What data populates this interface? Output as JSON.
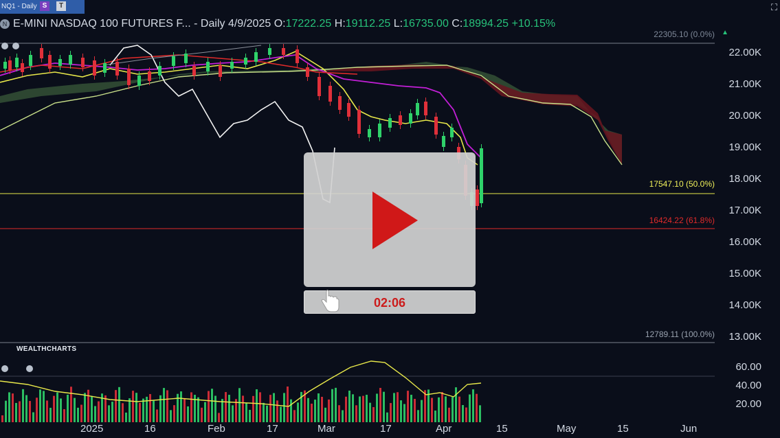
{
  "tab": {
    "label": "NQ1 - Daily",
    "s_btn": "S",
    "t_btn": "T"
  },
  "legend": {
    "symbol": "N",
    "title": "E-MINI NASDAQ 100 FUTURES F... - Daily",
    "date": "4/9/2025",
    "open_key": "O:",
    "open": "17222.25",
    "high_key": "H:",
    "high": "19112.25",
    "low_key": "L:",
    "low": "16735.00",
    "close_key": "C:",
    "close": "18994.25",
    "change": "+10.15%",
    "change_arrow": "▲"
  },
  "price_levels": {
    "top": "22305.10 (0.0%)",
    "mid": "17547.10 (50.0%)",
    "fib618": "16424.22 (61.8%)",
    "bottom": "12789.11 (100.0%)"
  },
  "colors": {
    "up": "#2fd26a",
    "down": "#e0303a",
    "fib50": "#e8e84a",
    "fib618": "#e02a2a",
    "play": "#d01818",
    "cloud_green": "#3a5a3a",
    "cloud_red": "#6a1520"
  },
  "y_axis": [
    "22.00K",
    "21.00K",
    "20.00K",
    "19.00K",
    "18.00K",
    "17.00K",
    "16.00K",
    "15.00K",
    "14.00K",
    "13.00K"
  ],
  "x_axis": [
    "2025",
    "16",
    "Feb",
    "17",
    "Mar",
    "17",
    "Apr",
    "15",
    "May",
    "15",
    "Jun"
  ],
  "ind_axis": [
    "60.00",
    "40.00",
    "20.00"
  ],
  "indicator_brand": "WEALTHCHARTS",
  "video": {
    "duration": "02:06",
    "play_icon": "play-icon"
  },
  "icons": {
    "expand": "expand-icon",
    "cursor": "hand-cursor-icon"
  }
}
